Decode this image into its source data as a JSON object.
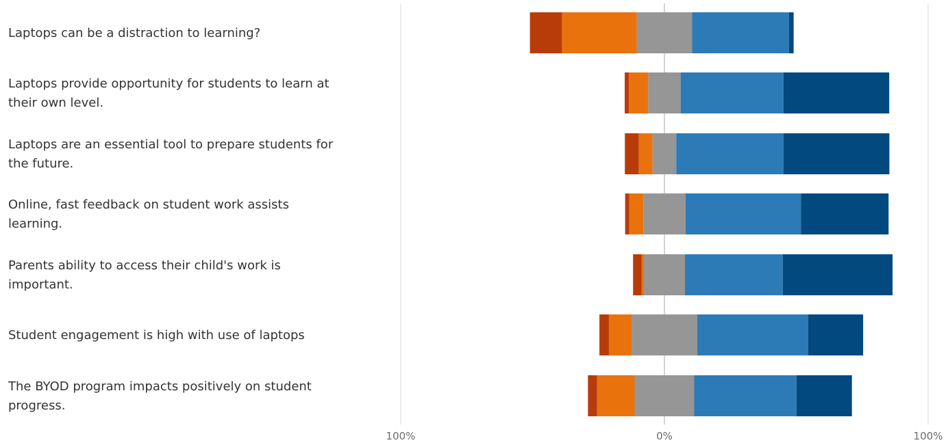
{
  "chart_data": {
    "type": "bar",
    "orientation": "horizontal",
    "stacked": "diverging",
    "categories": [
      {
        "lines": [
          "Laptops can be a distraction to learning?"
        ]
      },
      {
        "lines": [
          "Laptops provide opportunity for students to learn at",
          "their own level."
        ]
      },
      {
        "lines": [
          "Laptops are an essential tool to prepare students for",
          "the future."
        ]
      },
      {
        "lines": [
          "Online, fast feedback on student work assists",
          "learning."
        ]
      },
      {
        "lines": [
          "Parents ability to access their child's work is",
          "important."
        ]
      },
      {
        "lines": [
          "Student engagement is high with use of laptops"
        ]
      },
      {
        "lines": [
          "The BYOD program impacts positively on  student",
          "progress."
        ]
      }
    ],
    "series": [
      {
        "color": "#b83c0a",
        "side": "negative",
        "values": [
          12.2,
          1.6,
          5.3,
          1.6,
          3.2,
          3.6,
          3.5
        ]
      },
      {
        "color": "#ea720d",
        "side": "negative",
        "values": [
          28.3,
          7.3,
          5.2,
          5.3,
          0.9,
          8.6,
          14.2
        ]
      },
      {
        "color": "#969696",
        "side": "neutral",
        "values": [
          21.0,
          12.3,
          9.0,
          16.0,
          15.6,
          24.9,
          22.6
        ]
      },
      {
        "color": "#2d7bb6",
        "side": "positive",
        "values": [
          36.7,
          39.0,
          40.7,
          43.8,
          37.1,
          42.1,
          38.8
        ]
      },
      {
        "color": "#01497f",
        "side": "positive",
        "values": [
          1.8,
          40.1,
          40.1,
          33.2,
          41.6,
          20.8,
          21.0
        ]
      }
    ],
    "xlim": [
      -100,
      100
    ],
    "xticks": [
      "100%",
      "0%",
      "100%"
    ],
    "grid": true,
    "legend": "none",
    "gridline_color": "#d9d9d9",
    "center_line_color": "#d3d3d3"
  }
}
